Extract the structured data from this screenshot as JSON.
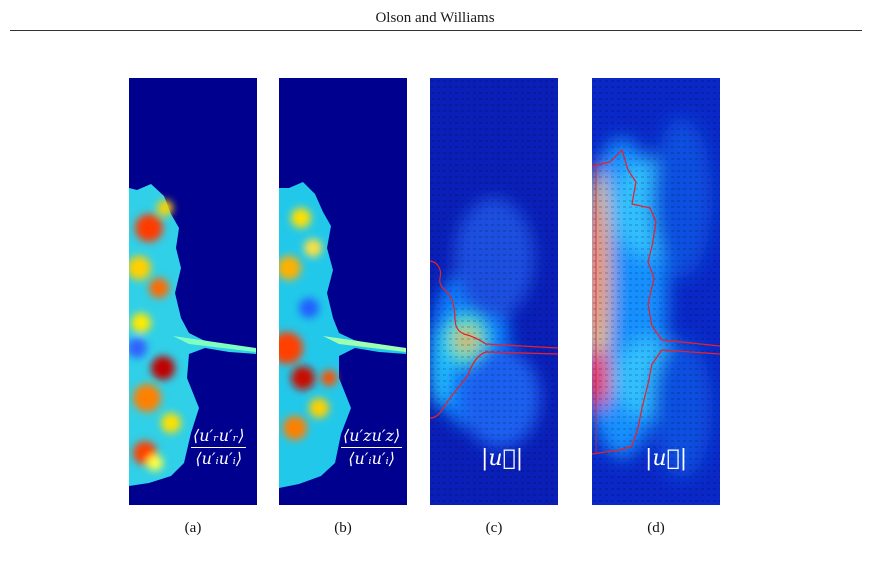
{
  "header": {
    "authors": "Olson and Williams"
  },
  "figure": {
    "panels": [
      {
        "label": "(a)",
        "quantity": "⟨u′ᵣu′ᵣ⟩",
        "normalization": "⟨u′ᵢu′ᵢ⟩",
        "colormap": "jet"
      },
      {
        "label": "(b)",
        "quantity": "⟨u′zu′z⟩",
        "normalization": "⟨u′ᵢu′ᵢ⟩",
        "colormap": "jet"
      },
      {
        "label": "(c)",
        "quantity": "|u⃗|",
        "colormap": "jet",
        "contour_color": "#e8202a",
        "vectors": "black"
      },
      {
        "label": "(d)",
        "quantity": "|u⃗|",
        "colormap": "jet",
        "contour_color": "#e8202a",
        "vectors": "black"
      }
    ]
  }
}
